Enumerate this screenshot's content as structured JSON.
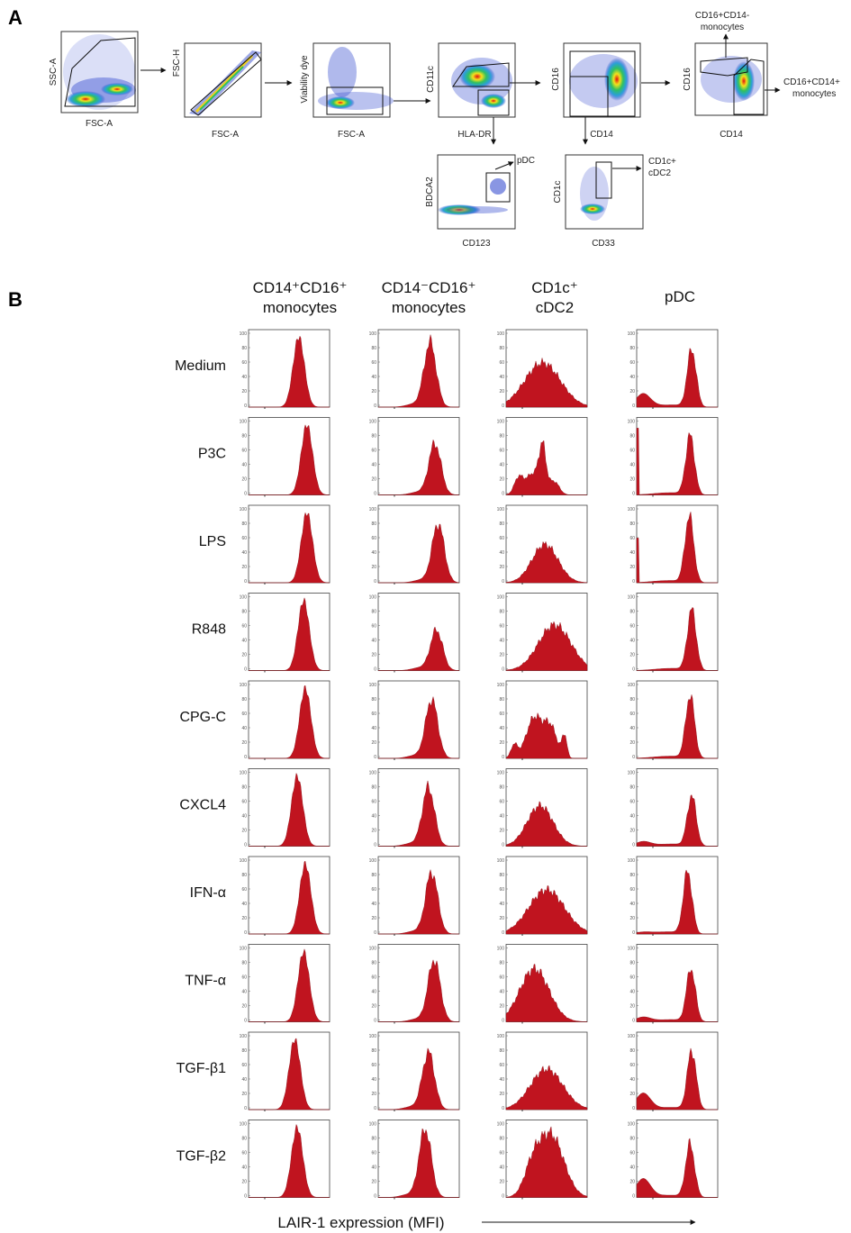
{
  "panel_a": {
    "letter": "A",
    "plots": [
      {
        "name": "scatter-ssc-fsc",
        "ylabel": "SSC-A",
        "xlabel": "FSC-A"
      },
      {
        "name": "scatter-fsch-fsca",
        "ylabel": "FSC-H",
        "xlabel": "FSC-A"
      },
      {
        "name": "scatter-viability",
        "ylabel": "Viability dye",
        "xlabel": "FSC-A"
      },
      {
        "name": "scatter-cd11c-hladr",
        "ylabel": "CD11c",
        "xlabel": "HLA-DR"
      },
      {
        "name": "scatter-cd16-cd14",
        "ylabel": "CD16",
        "xlabel": "CD14"
      },
      {
        "name": "scatter-cd16-cd14-subsets",
        "ylabel": "CD16",
        "xlabel": "CD14"
      },
      {
        "name": "scatter-bdca2-cd123",
        "ylabel": "BDCA2",
        "xlabel": "CD123"
      },
      {
        "name": "scatter-cd1c-cd33",
        "ylabel": "CD1c",
        "xlabel": "CD33"
      }
    ],
    "gate_labels": {
      "cd16_cd14_neg": [
        "CD16+CD14-",
        "monocytes"
      ],
      "cd16_cd14_pos": [
        "CD16+CD14+",
        "monocytes"
      ],
      "pdc": "pDC",
      "cdc2": [
        "CD1c+",
        "cDC2"
      ]
    }
  },
  "panel_b": {
    "letter": "B",
    "columns": [
      "CD14⁺CD16⁺ monocytes",
      "CD14⁻CD16⁺ monocytes",
      "CD1c⁺ cDC2",
      "pDC"
    ],
    "column_lines": [
      [
        "CD14⁺CD16⁺",
        "monocytes"
      ],
      [
        "CD14⁻CD16⁺",
        "monocytes"
      ],
      [
        "CD1c⁺",
        "cDC2"
      ],
      [
        "pDC"
      ]
    ],
    "rows": [
      "Medium",
      "P3C",
      "LPS",
      "R848",
      "CPG-C",
      "CXCL4",
      "IFN-α",
      "TNF-α",
      "TGF-β1",
      "TGF-β2"
    ],
    "y_ticks": [
      "100",
      "80",
      "60",
      "40",
      "20",
      "0"
    ],
    "xlabel": "LAIR-1 expression (MFI)",
    "fill_color": "#c0141f"
  }
}
